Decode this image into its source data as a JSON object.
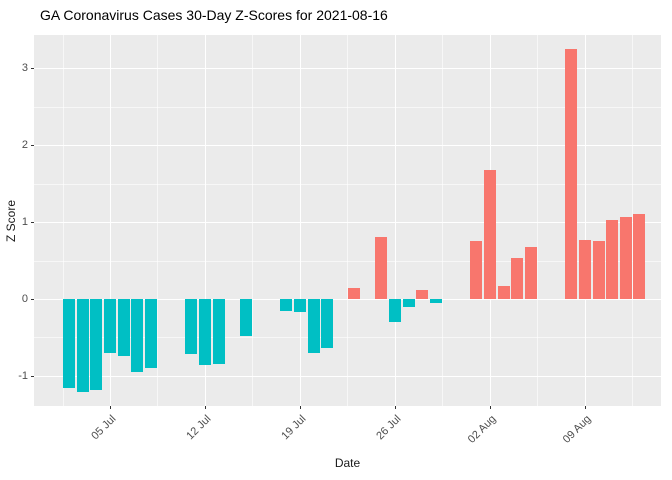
{
  "chart_data": {
    "type": "bar",
    "title": "GA Coronavirus Cases 30-Day Z-Scores for 2021-08-16",
    "xlabel": "Date",
    "ylabel": "Z Score",
    "ylim": [
      -1.39,
      3.43
    ],
    "grid": true,
    "legend": "none",
    "panel_bg": "#EBEBEB",
    "grid_color": "#FFFFFF",
    "bar_colors": {
      "positive": "#F8766D",
      "negative": "#00BFC4"
    },
    "y_major_ticks": [
      -1,
      0,
      1,
      2,
      3
    ],
    "y_minor_gridlines": [
      -0.5,
      0.5,
      1.5,
      2.5
    ],
    "x_ticks": [
      {
        "date": "2021-07-05",
        "label": "05 Jul"
      },
      {
        "date": "2021-07-12",
        "label": "12 Jul"
      },
      {
        "date": "2021-07-19",
        "label": "19 Jul"
      },
      {
        "date": "2021-07-26",
        "label": "26 Jul"
      },
      {
        "date": "2021-08-02",
        "label": "02 Aug"
      },
      {
        "date": "2021-08-09",
        "label": "09 Aug"
      }
    ],
    "bars": [
      {
        "date": "2021-07-02",
        "value": -1.15
      },
      {
        "date": "2021-07-03",
        "value": -1.21
      },
      {
        "date": "2021-07-04",
        "value": -1.18
      },
      {
        "date": "2021-07-05",
        "value": -0.7
      },
      {
        "date": "2021-07-06",
        "value": -0.74
      },
      {
        "date": "2021-07-07",
        "value": -0.95
      },
      {
        "date": "2021-07-08",
        "value": -0.89
      },
      {
        "date": "2021-07-11",
        "value": -0.71
      },
      {
        "date": "2021-07-12",
        "value": -0.86
      },
      {
        "date": "2021-07-13",
        "value": -0.84
      },
      {
        "date": "2021-07-15",
        "value": -0.48
      },
      {
        "date": "2021-07-18",
        "value": -0.15
      },
      {
        "date": "2021-07-19",
        "value": -0.17
      },
      {
        "date": "2021-07-20",
        "value": -0.7
      },
      {
        "date": "2021-07-21",
        "value": -0.64
      },
      {
        "date": "2021-07-23",
        "value": 0.14
      },
      {
        "date": "2021-07-25",
        "value": 0.8
      },
      {
        "date": "2021-07-26",
        "value": -0.3
      },
      {
        "date": "2021-07-27",
        "value": -0.1
      },
      {
        "date": "2021-07-28",
        "value": 0.12
      },
      {
        "date": "2021-07-29",
        "value": -0.05
      },
      {
        "date": "2021-08-01",
        "value": 0.75
      },
      {
        "date": "2021-08-02",
        "value": 1.68
      },
      {
        "date": "2021-08-03",
        "value": 0.17
      },
      {
        "date": "2021-08-04",
        "value": 0.53
      },
      {
        "date": "2021-08-05",
        "value": 0.67
      },
      {
        "date": "2021-08-08",
        "value": 3.25
      },
      {
        "date": "2021-08-09",
        "value": 0.77
      },
      {
        "date": "2021-08-10",
        "value": 0.76
      },
      {
        "date": "2021-08-11",
        "value": 1.03
      },
      {
        "date": "2021-08-12",
        "value": 1.06
      },
      {
        "date": "2021-08-13",
        "value": 1.1
      }
    ]
  }
}
